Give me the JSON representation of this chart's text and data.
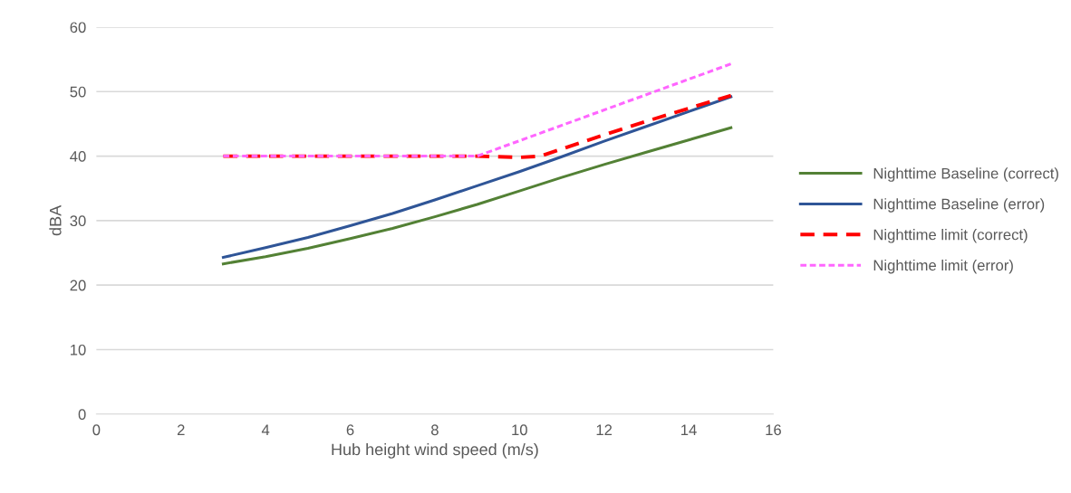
{
  "chart_data": {
    "type": "line",
    "xlabel": "Hub height wind speed (m/s)",
    "ylabel": "dBA",
    "xlim": [
      0,
      16
    ],
    "xticks": [
      0,
      2,
      4,
      6,
      8,
      10,
      12,
      14,
      16
    ],
    "ylim": [
      0,
      60
    ],
    "yticks": [
      0,
      10,
      20,
      30,
      40,
      50,
      60
    ],
    "grid": "y",
    "legend": "right",
    "marker": "none",
    "series": [
      {
        "name": "Nighttime Baseline (correct)",
        "color": "#538135",
        "line_style": "solid",
        "x": [
          3,
          4,
          5,
          6,
          7,
          8,
          9,
          10,
          11,
          12,
          13,
          14,
          15
        ],
        "values": [
          23.3,
          24.4,
          25.7,
          27.2,
          28.8,
          30.6,
          32.5,
          34.6,
          36.7,
          38.7,
          40.6,
          42.5,
          44.4
        ]
      },
      {
        "name": "Nighttime Baseline (error)",
        "color": "#2f5597",
        "line_style": "solid",
        "x": [
          3,
          4,
          5,
          6,
          7,
          8,
          9,
          10,
          11,
          12,
          13,
          14,
          15
        ],
        "values": [
          24.3,
          25.8,
          27.4,
          29.2,
          31.1,
          33.2,
          35.4,
          37.6,
          39.9,
          42.3,
          44.6,
          46.9,
          49.2
        ]
      },
      {
        "name": "Nighttime limit (correct)",
        "color": "#ff0000",
        "line_style": "dashed",
        "x": [
          3,
          4,
          5,
          6,
          7,
          8,
          9,
          9.5,
          10,
          10.5,
          11,
          12,
          13,
          14,
          15
        ],
        "values": [
          40,
          40,
          40,
          40,
          40,
          40,
          40,
          39.9,
          39.8,
          40,
          41.1,
          43.3,
          45.4,
          47.4,
          49.4
        ]
      },
      {
        "name": "Nighttime limit (error)",
        "color": "#ff66ff",
        "line_style": "dotted",
        "x": [
          3,
          9,
          15
        ],
        "values": [
          40,
          40,
          54.3
        ]
      }
    ]
  }
}
